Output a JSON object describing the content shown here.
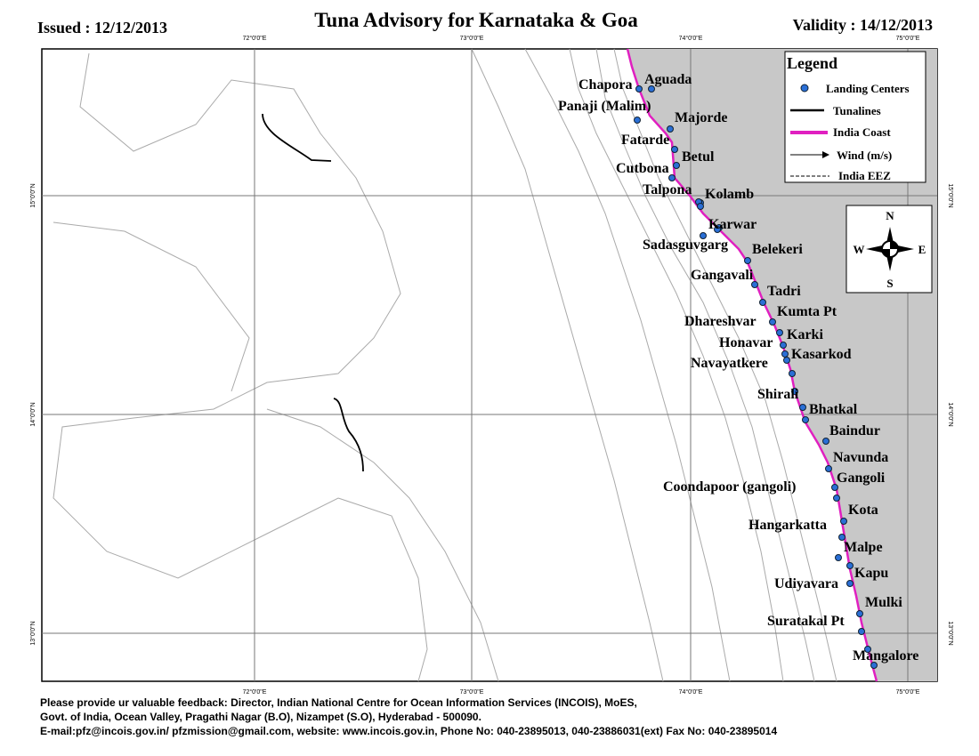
{
  "header": {
    "issued": "Issued : 12/12/2013",
    "title": "Tuna Advisory for Karnataka & Goa",
    "validity": "Validity : 14/12/2013"
  },
  "map": {
    "lon_labels": [
      "72°0'0\"E",
      "73°0'0\"E",
      "74°0'0\"E",
      "75°0'0\"E"
    ],
    "lat_labels": [
      "15°0'0\"N",
      "14°0'0\"N",
      "13°0'0\"N"
    ],
    "places": [
      "Aguada",
      "Chapora",
      "Panaji (Malim)",
      "Majorde",
      "Fatarde",
      "Betul",
      "Cutbona",
      "Talpona",
      "Kolamb",
      "Karwar",
      "Sadasguvgarg",
      "Belekeri",
      "Gangavali",
      "Tadri",
      "Kumta Pt",
      "Dhareshvar",
      "Karki",
      "Honavar",
      "Kasarkod",
      "Navayatkere",
      "Shirali",
      "Bhatkal",
      "Baindur",
      "Navunda",
      "Gangoli",
      "Coondapoor (gangoli)",
      "Kota",
      "Hangarkatta",
      "Malpe",
      "Kapu",
      "Udiyavara",
      "Mulki",
      "Suratakal Pt",
      "Mangalore"
    ],
    "legend": {
      "title": "Legend",
      "items": [
        "Landing Centers",
        "Tunalines",
        "India Coast",
        "Wind (m/s)",
        "India EEZ"
      ]
    },
    "compass": {
      "n": "N",
      "w": "W",
      "e": "E",
      "s": "S"
    }
  },
  "footer": [
    "Please provide ur valuable feedback: Director, Indian National Centre for Ocean Information Services (INCOIS), MoES,",
    "Govt. of India, Ocean Valley, Pragathi Nagar (B.O), Nizampet (S.O), Hyderabad - 500090.",
    "E-mail:pfz@incois.gov.in/ pfzmission@gmail.com, website: www.incois.gov.in, Phone No: 040-23895013, 040-23886031(ext) Fax No: 040-23895014"
  ]
}
